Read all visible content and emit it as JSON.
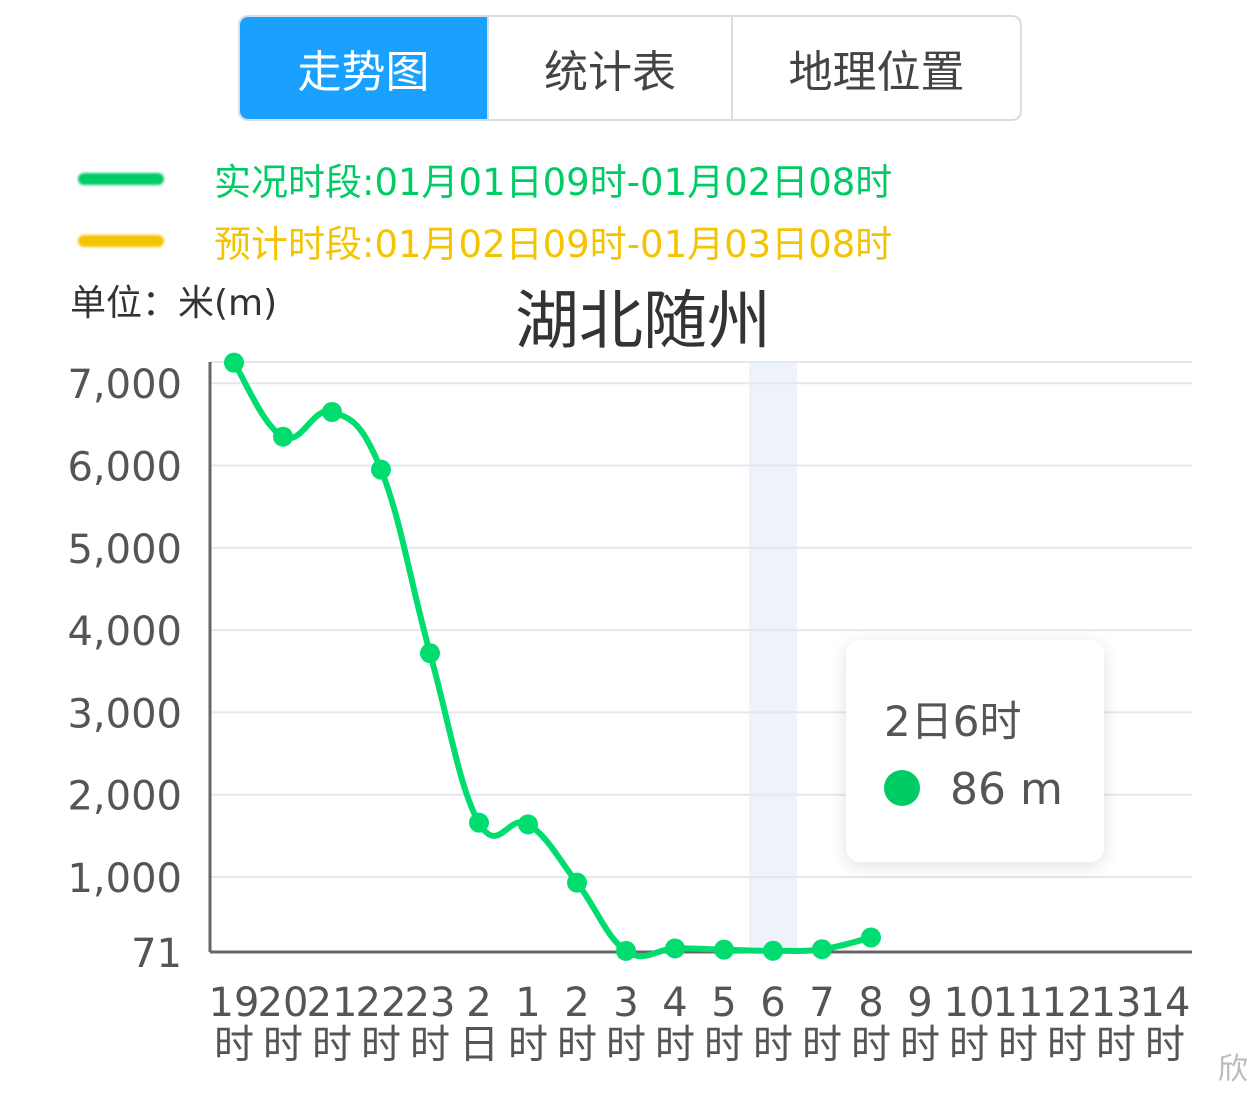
{
  "tabs": [
    {
      "label": "走势图",
      "active": true
    },
    {
      "label": "统计表",
      "active": false
    },
    {
      "label": "地理位置",
      "active": false
    }
  ],
  "legend": [
    {
      "text": "实况时段:01月01日09时-01月02日08时",
      "color": "#00cc66"
    },
    {
      "text": "预计时段:01月02日09时-01月03日08时",
      "color": "#f5c400"
    }
  ],
  "unit_label": "单位：米(m)",
  "tooltip": {
    "time": "2日6时",
    "value": "86 m"
  },
  "watermark": "欣",
  "chart_data": {
    "type": "line",
    "title": "湖北随州",
    "ylabel": "单位：米(m)",
    "yticks": [
      "7,000",
      "6,000",
      "5,000",
      "4,000",
      "3,000",
      "2,000",
      "1,000",
      "71"
    ],
    "ytick_values": [
      7000,
      6000,
      5000,
      4000,
      3000,
      2000,
      1000,
      71
    ],
    "categories": [
      [
        "19",
        "时"
      ],
      [
        "20",
        "时"
      ],
      [
        "21",
        "时"
      ],
      [
        "22",
        "时"
      ],
      [
        "23",
        "时"
      ],
      [
        "2",
        "日"
      ],
      [
        "1",
        "时"
      ],
      [
        "2",
        "时"
      ],
      [
        "3",
        "时"
      ],
      [
        "4",
        "时"
      ],
      [
        "5",
        "时"
      ],
      [
        "6",
        "时"
      ],
      [
        "7",
        "时"
      ],
      [
        "8",
        "时"
      ],
      [
        "9",
        "时"
      ],
      [
        "10",
        "时"
      ],
      [
        "11",
        "时"
      ],
      [
        "12",
        "时"
      ],
      [
        "13",
        "时"
      ],
      [
        "14",
        "时"
      ]
    ],
    "series": [
      {
        "values": [
          7250,
          6350,
          6650,
          5950,
          3720,
          1660,
          1640,
          930,
          85,
          115,
          100,
          86,
          105,
          251,
          null,
          null,
          null,
          null,
          null,
          null
        ],
        "color": "#00dd6e"
      }
    ],
    "highlight_index": 11,
    "grid": true
  }
}
